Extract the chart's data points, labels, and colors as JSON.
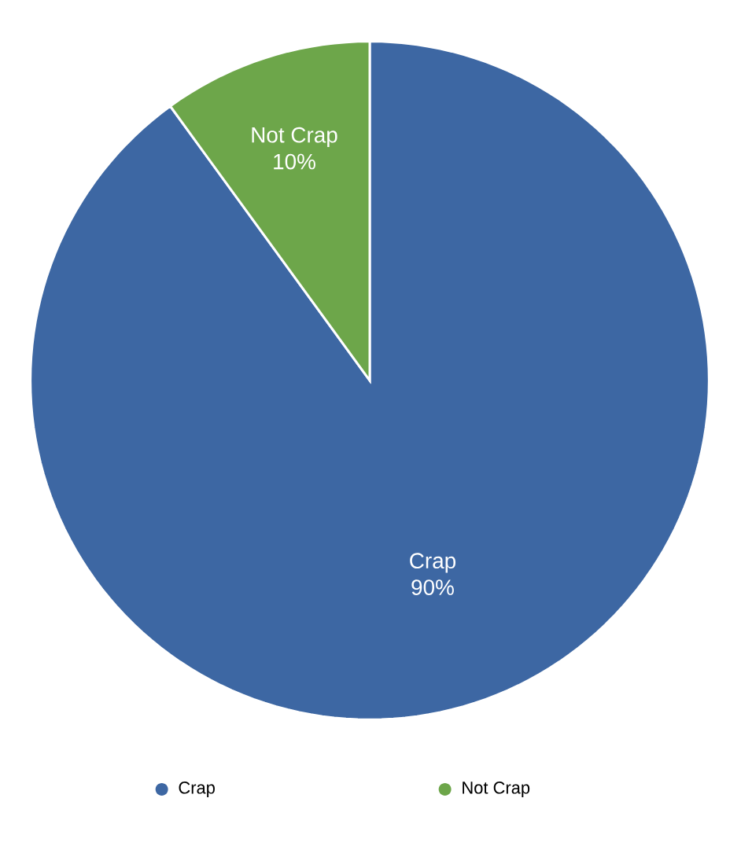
{
  "chart_data": {
    "type": "pie",
    "categories": [
      "Crap",
      "Not Crap"
    ],
    "values": [
      90,
      10
    ],
    "colors": [
      "#3d67a3",
      "#6da64a"
    ],
    "value_labels": [
      "90%",
      "10%"
    ],
    "legend": "bottom"
  }
}
